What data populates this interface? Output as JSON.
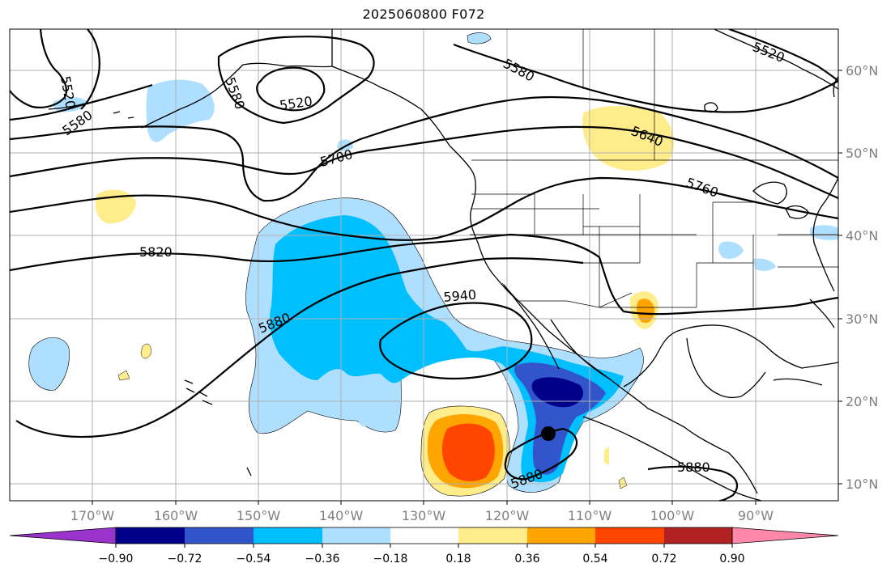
{
  "title": "2025060800 F072",
  "lat_labels": [
    "60°N",
    "50°N",
    "40°N",
    "30°N",
    "20°N",
    "10°N"
  ],
  "lon_labels": [
    "170°W",
    "160°W",
    "150°W",
    "140°W",
    "130°W",
    "120°W",
    "110°W",
    "100°W",
    "90°W"
  ],
  "contour_labels": [
    "5520",
    "5580",
    "5520",
    "5580",
    "5580",
    "5520",
    "5640",
    "5700",
    "5760",
    "5820",
    "5880",
    "5940",
    "5880",
    "5880",
    "5580"
  ],
  "colorbar": {
    "ticks": [
      "−0.90",
      "−0.72",
      "−0.54",
      "−0.36",
      "−0.18",
      "0.18",
      "0.36",
      "0.54",
      "0.72",
      "0.90"
    ],
    "colors": [
      "#9933cc",
      "#00008b",
      "#3355cc",
      "#00bfff",
      "#afdfff",
      "#ffffff",
      "#ffec8b",
      "#ffa500",
      "#ff4500",
      "#b22222",
      "#ff88aa"
    ]
  },
  "colors": {
    "frame": "#000000",
    "grid": "#b0b0b0",
    "contour": "#000000"
  }
}
